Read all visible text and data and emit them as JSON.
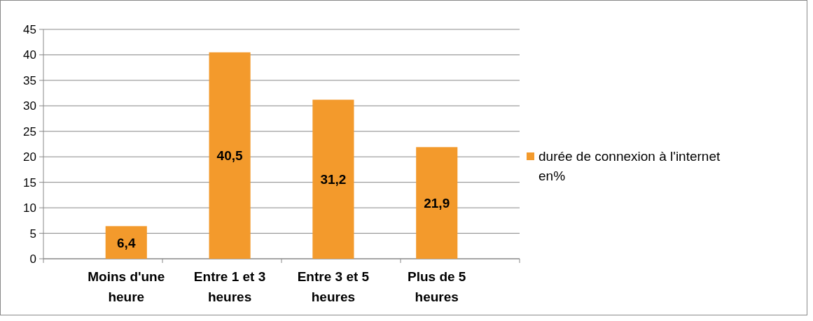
{
  "chart_data": {
    "type": "bar",
    "categories": [
      "Moins d'une heure",
      "Entre 1 et 3 heures",
      "Entre 3 et 5 heures",
      "Plus de 5 heures"
    ],
    "series": [
      {
        "name": "durée de connexion à l'internet en%",
        "color": "#f39a2c",
        "values": [
          6.4,
          40.5,
          31.2,
          21.9
        ],
        "value_labels": [
          "6,4",
          "40,5",
          "31,2",
          "21,9"
        ]
      }
    ],
    "ylim": [
      0,
      45
    ],
    "yticks": [
      0,
      5,
      10,
      15,
      20,
      25,
      30,
      35,
      40,
      45
    ],
    "grid": "y",
    "legend": "right"
  }
}
